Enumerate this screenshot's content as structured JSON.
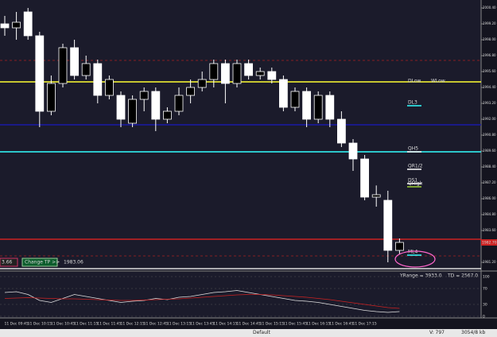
{
  "chart_data": [
    {
      "type": "candlestick",
      "open": [
        1999.2,
        1998.9,
        2000.1,
        1998.3,
        1992.6,
        1994.7,
        1997.4,
        1995.3,
        1996.2,
        1993.8,
        1993.8,
        1991.7,
        1993.5,
        1994.1,
        1992.0,
        1992.6,
        1993.8,
        1994.4,
        1995.0,
        1996.2,
        1994.7,
        1996.2,
        1995.3,
        1995.6,
        1995.0,
        1992.9,
        1994.1,
        1992.0,
        1993.8,
        1992.0,
        1990.2,
        1989.0,
        1986.12,
        1985.88,
        1982.1
      ],
      "close": [
        1998.9,
        1999.32,
        1998.3,
        1992.6,
        1994.7,
        1997.4,
        1995.3,
        1996.2,
        1993.8,
        1995.0,
        1992.0,
        1993.5,
        1994.1,
        1992.0,
        1992.6,
        1993.8,
        1994.4,
        1995.0,
        1996.2,
        1994.7,
        1996.2,
        1995.3,
        1995.6,
        1995.0,
        1992.9,
        1994.1,
        1992.0,
        1993.8,
        1992.0,
        1990.2,
        1989.0,
        1986.12,
        1986.3,
        1982.1,
        1982.7
      ],
      "high": [
        1999.8,
        2000.1,
        2000.4,
        1998.6,
        1995.3,
        1997.7,
        1998.0,
        1996.8,
        1996.5,
        1995.3,
        1994.1,
        1993.8,
        1994.4,
        1994.4,
        1992.9,
        1994.4,
        1995.0,
        1995.6,
        1996.5,
        1996.5,
        1996.5,
        1996.5,
        1995.9,
        1995.9,
        1995.3,
        1994.4,
        1994.4,
        1994.1,
        1994.1,
        1992.6,
        1990.5,
        1989.3,
        1987.0,
        1986.6,
        1983.0
      ],
      "low": [
        1998.3,
        1998.0,
        1998.0,
        1991.4,
        1992.3,
        1994.4,
        1995.0,
        1995.0,
        1993.2,
        1993.5,
        1991.4,
        1991.4,
        1992.6,
        1991.1,
        1991.7,
        1992.3,
        1993.2,
        1994.1,
        1994.4,
        1993.2,
        1994.4,
        1995.0,
        1995.0,
        1994.7,
        1992.6,
        1992.6,
        1991.4,
        1991.7,
        1991.4,
        1989.9,
        1988.1,
        1985.88,
        1985.4,
        1981.2,
        1981.8
      ],
      "up_color": "#000000",
      "down_color": "#ffffff",
      "ylim": [
        1980.6,
        2001.0
      ],
      "yticks": [
        {
          "value": 2000.4,
          "label": "2000.40"
        },
        {
          "value": 1999.2,
          "label": "1999.20"
        },
        {
          "value": 1998,
          "label": "1998.00"
        },
        {
          "value": 1996.8,
          "label": "1996.80"
        },
        {
          "value": 1995.6,
          "label": "1995.60"
        },
        {
          "value": 1994.4,
          "label": "1994.40"
        },
        {
          "value": 1993.2,
          "label": "1993.20"
        },
        {
          "value": 1992,
          "label": "1992.00"
        },
        {
          "value": 1990.8,
          "label": "1990.80"
        },
        {
          "value": 1989.6,
          "label": "1989.60"
        },
        {
          "value": 1988.4,
          "label": "1988.40"
        },
        {
          "value": 1987.2,
          "label": "1987.20"
        },
        {
          "value": 1986,
          "label": "1986.00"
        },
        {
          "value": 1984.8,
          "label": "1984.80"
        },
        {
          "value": 1983.6,
          "label": "1983.60"
        },
        {
          "value": 1981.2,
          "label": "1981.20"
        }
      ],
      "levels": [
        {
          "value": 1994.82,
          "color": "#ffff33",
          "labels": [
            "DLow",
            "WLow"
          ]
        },
        {
          "value": 1991.58,
          "color": "#1a1aa8"
        },
        {
          "value": 1989.54,
          "color": "#33ffff"
        },
        {
          "value": 1982.94,
          "color": "#cc2222"
        },
        {
          "value": 1996.44,
          "color": "#aa2222",
          "dashed": true
        },
        {
          "value": 1981.68,
          "color": "#aa2222",
          "dashed": true
        },
        {
          "value": 1980.72,
          "color": "#dddddd"
        }
      ],
      "markers": [
        {
          "label": "DL3",
          "value": 1993.2,
          "color": "#33ffff"
        },
        {
          "label": "QH5",
          "value": 1989.72,
          "color": "#ffffff"
        },
        {
          "label": "QR1/2",
          "value": 1988.4,
          "color": "#ffffff"
        },
        {
          "label": "DS1",
          "value": 1987.32,
          "color": "#ffffff"
        },
        {
          "label": "QHigh",
          "value": 1987.08,
          "color": "#99cc33"
        },
        {
          "label": "ML4",
          "value": 1981.92,
          "color": "#33ffff"
        }
      ],
      "last_price": {
        "value": 1982.7,
        "label": "1982.70"
      },
      "time_labels": [
        "11 Dec 09:45",
        "11 Dec 10:15",
        "11 Dec 10:45",
        "11 Dec 11:15",
        "11 Dec 11:45",
        "11 Dec 12:15",
        "11 Dec 12:45",
        "11 Dec 13:15",
        "11 Dec 13:45",
        "11 Dec 14:15",
        "11 Dec 14:45",
        "11 Dec 15:15",
        "11 Dec 15:45",
        "11 Dec 16:15",
        "11 Dec 16:45",
        "11 Dec 17:15"
      ],
      "annotations": {
        "tag": "3.66",
        "button": "Change TP >>",
        "price": "1983.06",
        "yrange": "YRange = 3933.0",
        "td": "TD = 2567.0"
      }
    },
    {
      "type": "line",
      "ylim": [
        0,
        100
      ],
      "yticks": [
        0,
        30,
        70,
        100
      ],
      "series": [
        {
          "color": "#e0e0e0",
          "values": [
            60,
            62,
            55,
            40,
            35,
            45,
            55,
            50,
            45,
            40,
            35,
            38,
            40,
            45,
            42,
            48,
            50,
            55,
            60,
            62,
            65,
            60,
            55,
            50,
            45,
            40,
            38,
            35,
            30,
            25,
            20,
            15,
            12,
            10,
            12
          ]
        },
        {
          "color": "#cc2222",
          "values": [
            45,
            46,
            47,
            46,
            45,
            44,
            44,
            43,
            42,
            41,
            40,
            40,
            41,
            42,
            43,
            44,
            46,
            48,
            50,
            52,
            54,
            55,
            55,
            54,
            52,
            50,
            48,
            45,
            42,
            38,
            34,
            30,
            26,
            22,
            20
          ]
        }
      ]
    }
  ],
  "status_bar": {
    "profile": "Default",
    "volume": "V: 797",
    "memory": "3054/8 kb"
  }
}
